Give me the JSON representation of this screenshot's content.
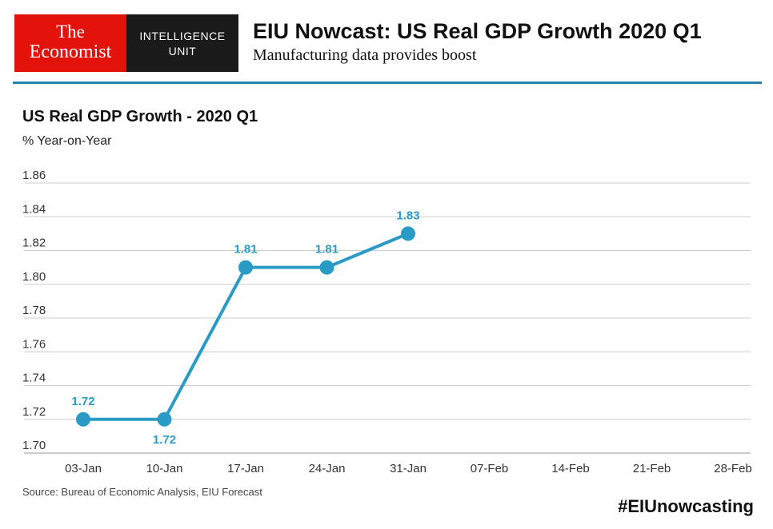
{
  "logo": {
    "line1": "The",
    "line2": "Economist",
    "unit_line1": "INTELLIGENCE",
    "unit_line2": "UNIT"
  },
  "header": {
    "title": "EIU Nowcast: US Real GDP Growth 2020 Q1",
    "subtitle": "Manufacturing data provides boost"
  },
  "footer": {
    "source": "Source: Bureau of Economic Analysis, EIU Forecast",
    "hashtag": "#EIUnowcasting"
  },
  "colors": {
    "accent": "#2a9bc5",
    "rule": "#2a7fa8",
    "grid": "#cccccc",
    "brand_red": "#e3120b"
  },
  "chart_data": {
    "type": "line",
    "title": "US Real GDP Growth - 2020 Q1",
    "ylabel": "% Year-on-Year",
    "xlabel": "",
    "categories": [
      "03-Jan",
      "10-Jan",
      "17-Jan",
      "24-Jan",
      "31-Jan",
      "07-Feb",
      "14-Feb",
      "21-Feb",
      "28-Feb"
    ],
    "series": [
      {
        "name": "US Real GDP Growth",
        "values": [
          1.72,
          1.72,
          1.81,
          1.81,
          1.83,
          null,
          null,
          null,
          null
        ]
      }
    ],
    "data_labels": [
      "1.72",
      "1.72",
      "1.81",
      "1.81",
      "1.83"
    ],
    "label_positions": [
      "above",
      "below",
      "above",
      "above",
      "above"
    ],
    "ylim": [
      1.7,
      1.86
    ],
    "yticks": [
      "1.70",
      "1.72",
      "1.74",
      "1.76",
      "1.78",
      "1.80",
      "1.82",
      "1.84",
      "1.86"
    ],
    "grid": true
  }
}
